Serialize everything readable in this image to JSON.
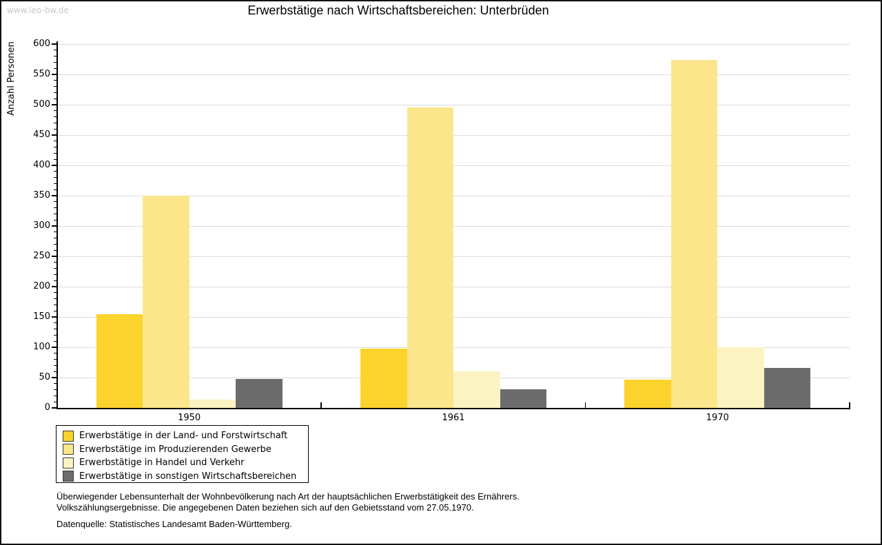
{
  "watermark": "www.leo-bw.de",
  "title": "Erwerbstätige nach Wirtschaftsbereichen: Unterbrüden",
  "chart_data": {
    "type": "bar",
    "title": "Erwerbstätige nach Wirtschaftsbereichen: Unterbrüden",
    "xlabel": "",
    "ylabel": "Anzahl Personen",
    "ylim": [
      0,
      600
    ],
    "ytick_step": 50,
    "minor_tick_step": 10,
    "yticks": [
      0,
      50,
      100,
      150,
      200,
      250,
      300,
      350,
      400,
      450,
      500,
      550,
      600
    ],
    "grid": true,
    "gridline_color": "#dcdcdc",
    "legend_position": "bottom-left",
    "categories": [
      "1950",
      "1961",
      "1970"
    ],
    "series": [
      {
        "name": "Erwerbstätige in der Land- und Forstwirtschaft",
        "color": "#fbd32c",
        "values": [
          154,
          98,
          47
        ]
      },
      {
        "name": "Erwerbstätige im Produzierenden Gewerbe",
        "color": "#fce68c",
        "values": [
          350,
          495,
          574
        ]
      },
      {
        "name": "Erwerbstätige in Handel und Verkehr",
        "color": "#fcf3c2",
        "values": [
          14,
          60,
          100
        ]
      },
      {
        "name": "Erwerbstätige in sonstigen Wirtschaftsbereichen",
        "color": "#6c6c6c",
        "values": [
          48,
          31,
          66
        ]
      }
    ]
  },
  "footnotes": {
    "line1": "Überwiegender Lebensunterhalt der Wohnbevölkerung nach Art der hauptsächlichen Erwerbstätigkeit des Ernährers.",
    "line2": "Volkszählungsergebnisse. Die angegebenen Daten beziehen sich auf den Gebietsstand vom 27.05.1970.",
    "source": "Datenquelle: Statistisches Landesamt Baden-Württemberg."
  }
}
